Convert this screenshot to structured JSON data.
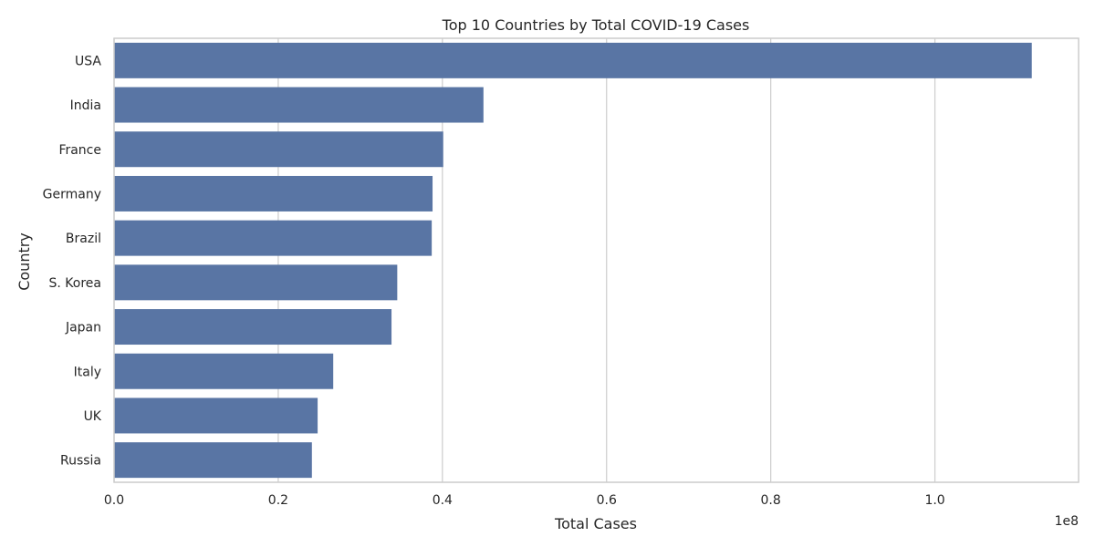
{
  "chart_data": {
    "type": "bar",
    "orientation": "horizontal",
    "title": "Top 10 Countries by Total COVID-19 Cases",
    "xlabel": "Total Cases",
    "ylabel": "Country",
    "x_offset_label": "1e8",
    "categories": [
      "USA",
      "India",
      "France",
      "Germany",
      "Brazil",
      "S. Korea",
      "Japan",
      "Italy",
      "UK",
      "Russia"
    ],
    "values": [
      111800000,
      45000000,
      40100000,
      38800000,
      38700000,
      34500000,
      33800000,
      26700000,
      24800000,
      24100000
    ],
    "xlim": [
      0,
      117500000
    ],
    "xticks": [
      0,
      20000000,
      40000000,
      60000000,
      80000000,
      100000000
    ],
    "xtick_labels": [
      "0.0",
      "0.2",
      "0.4",
      "0.6",
      "0.8",
      "1.0"
    ],
    "grid": true,
    "bar_color": "#5975a4",
    "grid_color": "#cccccc",
    "spine_color": "#cccccc"
  }
}
